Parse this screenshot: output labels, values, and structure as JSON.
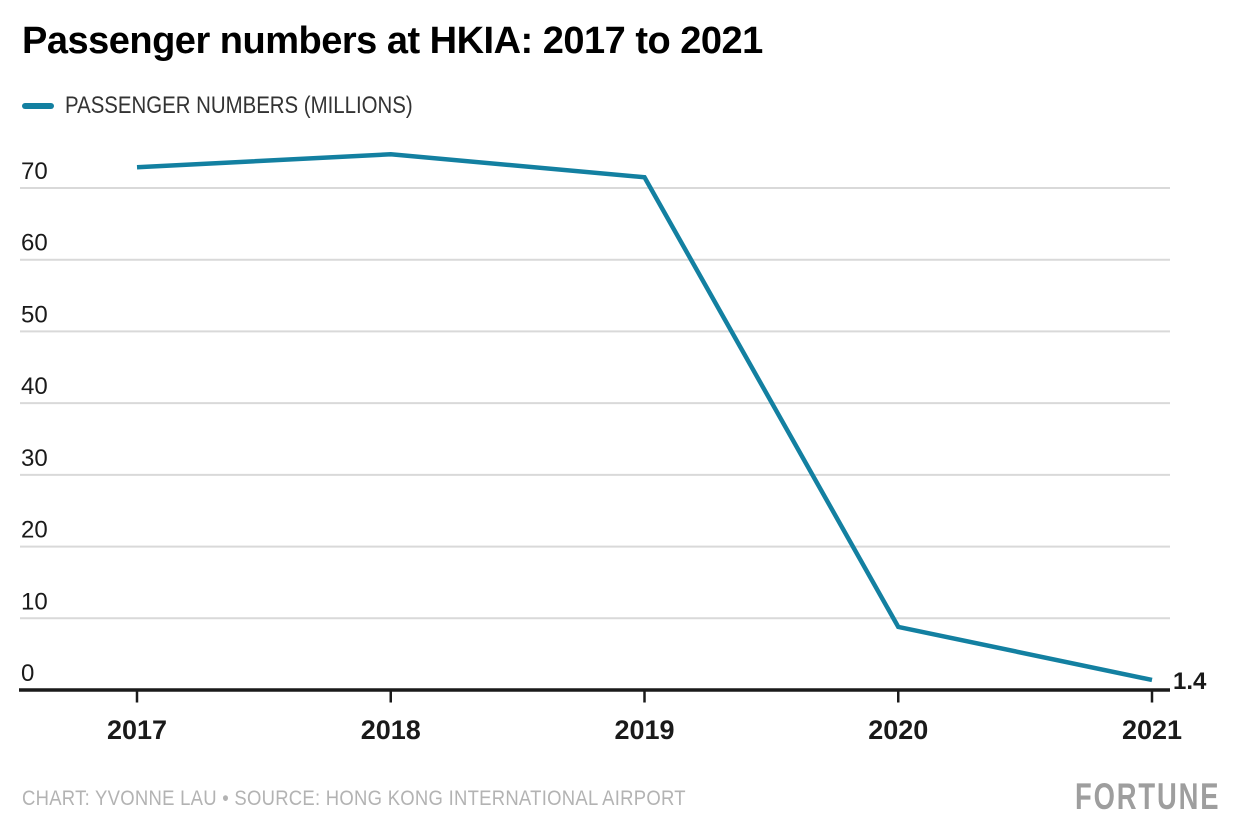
{
  "title": "Passenger numbers at HKIA: 2017 to 2021",
  "legend": {
    "label": "PASSENGER NUMBERS (MILLIONS)"
  },
  "chart_data": {
    "type": "line",
    "title": "Passenger numbers at HKIA: 2017 to 2021",
    "x": [
      "2017",
      "2018",
      "2019",
      "2020",
      "2021"
    ],
    "series": [
      {
        "name": "Passenger numbers (millions)",
        "values": [
          72.9,
          74.7,
          71.5,
          8.8,
          1.4
        ]
      }
    ],
    "end_label": "1.4",
    "xlabel": "",
    "ylabel": "",
    "ylim": [
      0,
      70
    ],
    "yticks": [
      0,
      10,
      20,
      30,
      40,
      50,
      60,
      70
    ],
    "grid": true,
    "legend_position": "top-left"
  },
  "footer": {
    "attribution": "CHART: YVONNE LAU • SOURCE: HONG KONG INTERNATIONAL AIRPORT",
    "brand": "FORTUNE"
  },
  "colors": {
    "line": "#1380a1",
    "grid": "#d9d9d9",
    "axis": "#1a1a1a",
    "label": "#1a1a1a",
    "muted": "#b3b3b3",
    "brand": "#9e9e9e"
  }
}
